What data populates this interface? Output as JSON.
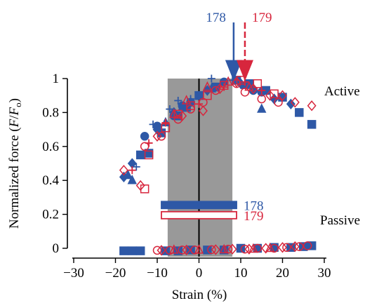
{
  "chart_data": {
    "type": "scatter",
    "xlabel": "Strain (%)",
    "ylabel": "Normalized force (F/Fo)",
    "ylabel_parts": {
      "pre": "Normalized force (",
      "num": "F",
      "slash": "/",
      "den": "F",
      "sub": "o",
      "post": ")"
    },
    "xlim": [
      -30,
      30
    ],
    "ylim": [
      0,
      1
    ],
    "x_ticks": [
      -30,
      -20,
      -10,
      0,
      10,
      20,
      30
    ],
    "x_tick_labels": [
      "−30",
      "−20",
      "−10",
      "0",
      "10",
      "20",
      "30"
    ],
    "y_ticks": [
      0,
      0.2,
      0.4,
      0.6,
      0.8,
      1
    ],
    "y_tick_labels": [
      "0",
      "0.2",
      "0.4",
      "0.6",
      "0.8",
      "1"
    ],
    "grid": false,
    "shaded_region": {
      "x": [
        -7.5,
        8
      ],
      "color": "#999999"
    },
    "zero_line_x": 0,
    "colors": {
      "s178": "#2e58a6",
      "s179": "#d7263d"
    },
    "labels": {
      "active": "Active",
      "passive": "Passive"
    },
    "arrows": [
      {
        "label": "178",
        "x": 8.3,
        "color": "#2e58a6",
        "style": "solid"
      },
      {
        "label": "179",
        "x": 11,
        "color": "#d7263d",
        "style": "dashed"
      }
    ],
    "range_bars": [
      {
        "label": "178",
        "x": [
          -9,
          9
        ],
        "y": 0.255,
        "filled": true,
        "color": "#2e58a6"
      },
      {
        "label": "179",
        "x": [
          -9,
          9
        ],
        "y": 0.195,
        "filled": false,
        "color": "#d7263d"
      }
    ],
    "series": [
      {
        "marker": "circle",
        "filled": true,
        "color": "#2e58a6",
        "points": [
          [
            -13,
            0.66
          ],
          [
            -10,
            0.72
          ],
          [
            -6,
            0.78
          ],
          [
            -4,
            0.84
          ],
          [
            -2,
            0.86
          ],
          [
            6,
            0.98
          ],
          [
            13,
            0.93
          ],
          [
            15,
            0.92
          ]
        ]
      },
      {
        "marker": "square",
        "filled": true,
        "color": "#2e58a6",
        "points": [
          [
            -14,
            0.55
          ],
          [
            -12,
            0.56
          ],
          [
            -9,
            0.68
          ],
          [
            -5,
            0.78
          ],
          [
            -3,
            0.83
          ],
          [
            0,
            0.9
          ],
          [
            4,
            0.95
          ],
          [
            9,
            0.99
          ],
          [
            12,
            0.97
          ],
          [
            16,
            0.93
          ],
          [
            20,
            0.89
          ],
          [
            24,
            0.8
          ],
          [
            27,
            0.73
          ]
        ]
      },
      {
        "marker": "diamond",
        "filled": true,
        "color": "#2e58a6",
        "points": [
          [
            -18,
            0.42
          ],
          [
            -16,
            0.5
          ],
          [
            -10,
            0.7
          ],
          [
            -6,
            0.8
          ],
          [
            2,
            0.93
          ],
          [
            10,
            0.97
          ],
          [
            18,
            0.88
          ],
          [
            22,
            0.85
          ]
        ]
      },
      {
        "marker": "triangle",
        "filled": true,
        "color": "#2e58a6",
        "points": [
          [
            -17,
            0.43
          ],
          [
            -16,
            0.4
          ],
          [
            -8,
            0.74
          ],
          [
            -4,
            0.83
          ],
          [
            3,
            0.94
          ],
          [
            11,
            0.96
          ],
          [
            15,
            0.82
          ]
        ]
      },
      {
        "marker": "plus",
        "filled": false,
        "color": "#2e58a6",
        "points": [
          [
            -15,
            0.48
          ],
          [
            -11,
            0.73
          ],
          [
            -7,
            0.82
          ],
          [
            -5,
            0.87
          ],
          [
            -2,
            0.88
          ],
          [
            3,
            1.0
          ],
          [
            8,
            0.99
          ]
        ]
      },
      {
        "marker": "circle",
        "filled": false,
        "color": "#d7263d",
        "points": [
          [
            -13,
            0.6
          ],
          [
            -9,
            0.66
          ],
          [
            -5,
            0.76
          ],
          [
            -2,
            0.82
          ],
          [
            1,
            0.86
          ],
          [
            4,
            0.93
          ],
          [
            9,
            0.97
          ],
          [
            11,
            0.92
          ],
          [
            15,
            0.88
          ],
          [
            19,
            0.86
          ]
        ]
      },
      {
        "marker": "square",
        "filled": false,
        "color": "#d7263d",
        "points": [
          [
            -13,
            0.35
          ],
          [
            -12,
            0.55
          ],
          [
            -8,
            0.71
          ],
          [
            -5,
            0.79
          ],
          [
            -2,
            0.84
          ],
          [
            2,
            0.9
          ],
          [
            6,
            0.96
          ],
          [
            10,
            0.99
          ],
          [
            14,
            0.97
          ],
          [
            18,
            0.91
          ]
        ]
      },
      {
        "marker": "diamond",
        "filled": false,
        "color": "#d7263d",
        "points": [
          [
            -18,
            0.46
          ],
          [
            -14,
            0.37
          ],
          [
            -10,
            0.66
          ],
          [
            -4,
            0.78
          ],
          [
            1,
            0.81
          ],
          [
            5,
            0.94
          ],
          [
            9,
            0.98
          ],
          [
            13,
            0.94
          ],
          [
            17,
            0.9
          ],
          [
            20,
            0.9
          ],
          [
            23,
            0.86
          ],
          [
            27,
            0.84
          ]
        ]
      },
      {
        "marker": "triangle",
        "filled": false,
        "color": "#d7263d",
        "points": [
          [
            -6,
            0.79
          ],
          [
            -3,
            0.87
          ],
          [
            2,
            0.95
          ],
          [
            7,
            0.98
          ],
          [
            12,
            0.95
          ]
        ]
      },
      {
        "marker": "plus",
        "filled": false,
        "color": "#d7263d",
        "points": [
          [
            -16,
            0.46
          ],
          [
            -12,
            0.62
          ],
          [
            -8,
            0.74
          ],
          [
            0,
            0.85
          ],
          [
            6,
            0.95
          ],
          [
            11,
            0.98
          ],
          [
            15,
            0.93
          ]
        ]
      },
      {
        "marker": "square",
        "filled": true,
        "color": "#2e58a6",
        "points": [
          [
            -18,
            -0.015
          ],
          [
            -16,
            -0.015
          ],
          [
            -14,
            -0.015
          ],
          [
            -8,
            -0.015
          ],
          [
            -5,
            -0.015
          ],
          [
            -2,
            -0.01
          ],
          [
            2,
            -0.01
          ],
          [
            6,
            -0.01
          ],
          [
            10,
            0.0
          ],
          [
            14,
            0.0
          ],
          [
            18,
            0.005
          ],
          [
            22,
            0.005
          ],
          [
            25,
            0.01
          ],
          [
            27,
            0.015
          ]
        ]
      },
      {
        "marker": "circle",
        "filled": false,
        "color": "#d7263d",
        "points": [
          [
            -10,
            -0.012
          ],
          [
            -7,
            -0.012
          ],
          [
            -4,
            -0.01
          ],
          [
            -1,
            -0.01
          ],
          [
            3,
            -0.008
          ],
          [
            7,
            -0.005
          ],
          [
            11,
            -0.005
          ],
          [
            14,
            0.0
          ],
          [
            18,
            0.0
          ],
          [
            21,
            0.005
          ],
          [
            24,
            0.01
          ],
          [
            26,
            0.015
          ]
        ]
      },
      {
        "marker": "diamond",
        "filled": false,
        "color": "#d7263d",
        "points": [
          [
            -9,
            -0.012
          ],
          [
            -3,
            -0.01
          ],
          [
            4,
            -0.008
          ],
          [
            8,
            -0.005
          ],
          [
            12,
            -0.005
          ],
          [
            16,
            0.0
          ],
          [
            20,
            0.005
          ],
          [
            23,
            0.01
          ]
        ]
      },
      {
        "marker": "triangle",
        "filled": false,
        "color": "#d7263d",
        "points": [
          [
            -6,
            -0.01
          ],
          [
            0,
            -0.01
          ],
          [
            6,
            -0.008
          ],
          [
            13,
            -0.004
          ],
          [
            17,
            0.0
          ]
        ]
      }
    ]
  }
}
